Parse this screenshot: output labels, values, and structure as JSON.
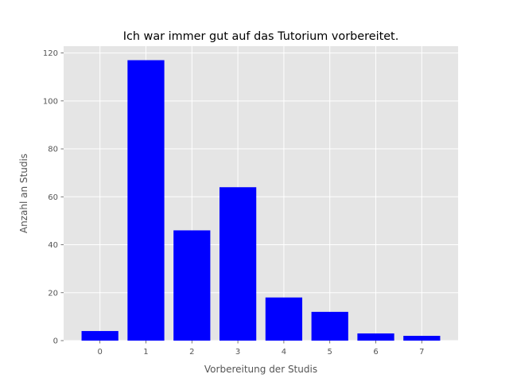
{
  "chart_data": {
    "type": "bar",
    "title": "Ich war immer gut auf das Tutorium vorbereitet.",
    "xlabel": "Vorbereitung der Studis",
    "ylabel": "Anzahl an Studis",
    "categories": [
      "0",
      "1",
      "2",
      "3",
      "4",
      "5",
      "6",
      "7"
    ],
    "values": [
      4,
      117,
      46,
      64,
      18,
      12,
      3,
      2
    ],
    "yticks": [
      "0",
      "20",
      "40",
      "60",
      "80",
      "100",
      "120"
    ],
    "ylim": [
      0,
      122.85
    ],
    "grid": true,
    "bar_color": "#0000ff",
    "background_color": "#e5e5e5",
    "grid_color": "#ffffff"
  }
}
